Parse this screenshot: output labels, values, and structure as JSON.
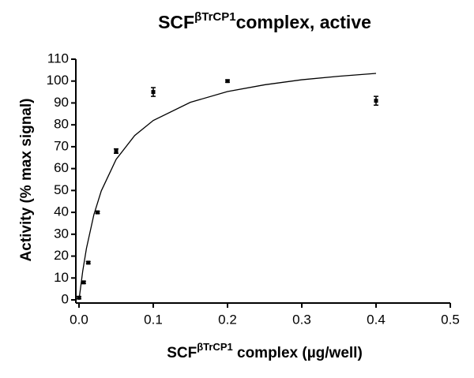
{
  "chart_data": {
    "type": "scatter",
    "title_parts": [
      "SCF",
      "βTrCP1",
      "complex, active"
    ],
    "xlabel_parts": [
      "SCF",
      "βTrCP1",
      " complex (µg/well)"
    ],
    "ylabel": "Activity (% max signal)",
    "xlim": [
      0,
      0.5
    ],
    "xticks": [
      {
        "value": 0,
        "label": "0.0"
      },
      0.1,
      0.2,
      0.3,
      0.4,
      0.5
    ],
    "ylim": [
      0,
      110
    ],
    "yticks": [
      0,
      10,
      20,
      30,
      40,
      50,
      60,
      70,
      80,
      90,
      100,
      110
    ],
    "color": "#000000",
    "points": {
      "x": [
        0,
        0.00625,
        0.0125,
        0.025,
        0.05,
        0.1,
        0.2,
        0.4
      ],
      "values": [
        1,
        8,
        17,
        40,
        68,
        95,
        100,
        91
      ],
      "errors": [
        0.5,
        0.5,
        0.5,
        0.5,
        1,
        2,
        0.5,
        2
      ]
    },
    "fit": {
      "x": [
        0,
        0.005,
        0.01,
        0.02,
        0.03,
        0.05,
        0.075,
        0.1,
        0.15,
        0.2,
        0.25,
        0.3,
        0.35,
        0.4
      ],
      "values": [
        0,
        13.1,
        23.5,
        38.9,
        49.8,
        64.2,
        75.1,
        82.0,
        90.3,
        95.2,
        98.3,
        100.6,
        102.2,
        103.5
      ]
    }
  }
}
